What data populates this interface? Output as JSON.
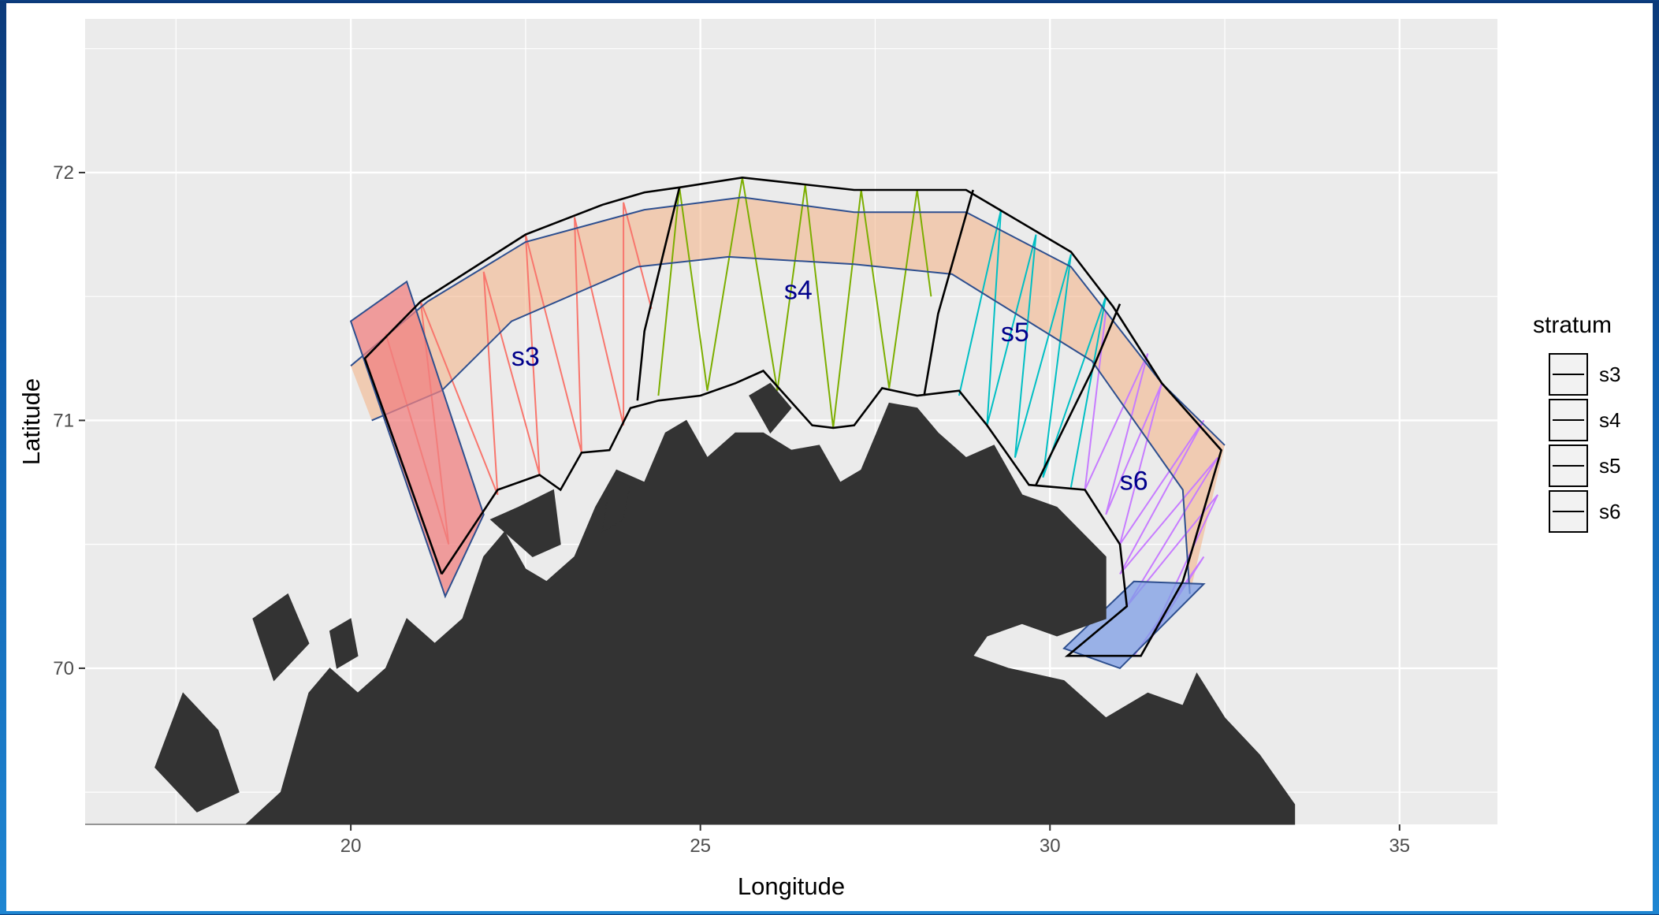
{
  "chart_data": {
    "type": "map",
    "xlabel": "Longitude",
    "ylabel": "Latitude",
    "xlim": [
      16.2,
      36.4
    ],
    "ylim": [
      69.37,
      72.62
    ],
    "x_ticks": [
      20,
      25,
      30,
      35
    ],
    "y_ticks": [
      70,
      71,
      72
    ],
    "x_minor": [
      17.5,
      22.5,
      27.5,
      32.5
    ],
    "y_minor": [
      69.5,
      70.5,
      71.5,
      72.5
    ],
    "grid": true,
    "legend": {
      "title": "stratum",
      "position": "right",
      "entries": [
        "s3",
        "s4",
        "s5",
        "s6"
      ]
    },
    "labels": [
      {
        "text": "s3",
        "lon": 22.5,
        "lat": 71.22
      },
      {
        "text": "s4",
        "lon": 26.4,
        "lat": 71.49
      },
      {
        "text": "s5",
        "lon": 29.5,
        "lat": 71.32
      },
      {
        "text": "s6",
        "lon": 31.2,
        "lat": 70.72
      }
    ],
    "label_color": "#00008b",
    "colors": {
      "s3": "#f8766d",
      "s4": "#7cae00",
      "s5": "#00bfc4",
      "s6": "#c77cff",
      "band_fill": "#f4b183",
      "band_line": "#2e4f8f",
      "box_red": "#f08080",
      "box_blue": "#7d9ee6",
      "land": "#333333",
      "panel": "#ebebeb"
    },
    "strata_outline": [
      [
        21.3,
        70.38
      ],
      [
        20.2,
        71.25
      ],
      [
        21.0,
        71.48
      ],
      [
        22.5,
        71.75
      ],
      [
        23.6,
        71.87
      ],
      [
        24.2,
        71.92
      ],
      [
        24.7,
        71.94
      ],
      [
        25.6,
        71.98
      ],
      [
        27.2,
        71.93
      ],
      [
        28.8,
        71.93
      ],
      [
        30.3,
        71.68
      ],
      [
        30.9,
        71.46
      ],
      [
        31.6,
        71.15
      ],
      [
        32.45,
        70.88
      ],
      [
        31.9,
        70.35
      ],
      [
        31.3,
        70.05
      ],
      [
        30.25,
        70.05
      ],
      [
        31.1,
        70.25
      ],
      [
        31.0,
        70.5
      ],
      [
        30.5,
        70.72
      ],
      [
        29.7,
        70.74
      ],
      [
        29.1,
        70.98
      ],
      [
        28.7,
        71.12
      ],
      [
        28.1,
        71.1
      ],
      [
        27.6,
        71.13
      ],
      [
        27.2,
        70.98
      ],
      [
        26.9,
        70.97
      ],
      [
        26.6,
        70.98
      ],
      [
        25.9,
        71.2
      ],
      [
        25.5,
        71.15
      ],
      [
        25.0,
        71.1
      ],
      [
        24.4,
        71.08
      ],
      [
        24.0,
        71.05
      ],
      [
        23.7,
        70.88
      ],
      [
        23.3,
        70.87
      ],
      [
        23.0,
        70.72
      ],
      [
        22.7,
        70.78
      ],
      [
        22.1,
        70.72
      ],
      [
        21.3,
        70.38
      ]
    ],
    "strata_dividers": [
      [
        [
          24.1,
          71.08
        ],
        [
          24.2,
          71.36
        ],
        [
          24.7,
          71.94
        ]
      ],
      [
        [
          28.2,
          71.1
        ],
        [
          28.4,
          71.43
        ],
        [
          28.9,
          71.93
        ]
      ],
      [
        [
          29.8,
          70.74
        ],
        [
          30.6,
          71.2
        ],
        [
          31.0,
          71.47
        ]
      ]
    ],
    "band_outer": [
      [
        20.0,
        71.22
      ],
      [
        21.1,
        71.48
      ],
      [
        22.5,
        71.72
      ],
      [
        24.2,
        71.85
      ],
      [
        25.6,
        71.9
      ],
      [
        27.2,
        71.84
      ],
      [
        28.8,
        71.84
      ],
      [
        30.3,
        71.62
      ],
      [
        31.6,
        71.15
      ],
      [
        32.5,
        70.9
      ]
    ],
    "band_inner": [
      [
        32.0,
        70.3
      ],
      [
        31.9,
        70.72
      ],
      [
        30.6,
        71.24
      ],
      [
        28.6,
        71.59
      ],
      [
        27.2,
        71.63
      ],
      [
        25.4,
        71.66
      ],
      [
        24.1,
        71.62
      ],
      [
        22.3,
        71.4
      ],
      [
        21.3,
        71.12
      ],
      [
        20.3,
        71.0
      ]
    ],
    "box_red": [
      [
        20.0,
        71.4
      ],
      [
        20.8,
        71.56
      ],
      [
        21.9,
        70.62
      ],
      [
        21.35,
        70.29
      ]
    ],
    "box_blue": [
      [
        30.2,
        70.08
      ],
      [
        31.2,
        70.35
      ],
      [
        32.2,
        70.34
      ],
      [
        31.0,
        70.0
      ]
    ],
    "transects": {
      "s3": [
        [
          20.5,
          71.35
        ],
        [
          21.4,
          70.5
        ],
        [
          21.0,
          71.48
        ],
        [
          22.1,
          70.7
        ],
        [
          21.9,
          71.6
        ],
        [
          22.7,
          70.78
        ],
        [
          22.5,
          71.75
        ],
        [
          23.3,
          70.87
        ],
        [
          23.2,
          71.82
        ],
        [
          23.9,
          70.98
        ],
        [
          23.9,
          71.88
        ],
        [
          24.3,
          71.45
        ]
      ],
      "s4": [
        [
          24.4,
          71.1
        ],
        [
          24.7,
          71.94
        ],
        [
          25.1,
          71.12
        ],
        [
          25.6,
          71.98
        ],
        [
          26.1,
          71.12
        ],
        [
          26.5,
          71.95
        ],
        [
          26.9,
          70.97
        ],
        [
          27.3,
          71.93
        ],
        [
          27.7,
          71.13
        ],
        [
          28.1,
          71.93
        ],
        [
          28.3,
          71.5
        ]
      ],
      "s5": [
        [
          28.7,
          71.1
        ],
        [
          29.3,
          71.85
        ],
        [
          29.1,
          70.98
        ],
        [
          29.8,
          71.75
        ],
        [
          29.5,
          70.85
        ],
        [
          30.3,
          71.67
        ],
        [
          29.9,
          70.77
        ],
        [
          30.8,
          71.5
        ],
        [
          30.3,
          70.73
        ]
      ],
      "s6": [
        [
          30.8,
          71.44
        ],
        [
          30.5,
          70.72
        ],
        [
          31.4,
          71.27
        ],
        [
          30.8,
          70.62
        ],
        [
          31.6,
          71.15
        ],
        [
          31.0,
          70.5
        ],
        [
          32.2,
          71.0
        ],
        [
          31.0,
          70.38
        ],
        [
          32.4,
          70.85
        ],
        [
          31.1,
          70.25
        ],
        [
          32.4,
          70.7
        ],
        [
          31.4,
          70.1
        ],
        [
          32.2,
          70.45
        ],
        [
          31.2,
          70.05
        ]
      ]
    },
    "land": [
      [
        [
          16.2,
          69.37
        ],
        [
          18.5,
          69.37
        ],
        [
          19.0,
          69.5
        ],
        [
          19.4,
          69.9
        ],
        [
          19.7,
          70.0
        ],
        [
          20.1,
          69.9
        ],
        [
          20.5,
          70.0
        ],
        [
          20.8,
          70.2
        ],
        [
          21.2,
          70.1
        ],
        [
          21.6,
          70.2
        ],
        [
          21.9,
          70.45
        ],
        [
          22.2,
          70.55
        ],
        [
          22.5,
          70.4
        ],
        [
          22.8,
          70.35
        ],
        [
          23.2,
          70.45
        ],
        [
          23.5,
          70.65
        ],
        [
          23.8,
          70.8
        ],
        [
          24.2,
          70.75
        ],
        [
          24.5,
          70.95
        ],
        [
          24.8,
          71.0
        ],
        [
          25.1,
          70.85
        ],
        [
          25.5,
          70.95
        ],
        [
          25.9,
          70.95
        ],
        [
          26.3,
          70.88
        ],
        [
          26.7,
          70.9
        ],
        [
          27.0,
          70.75
        ],
        [
          27.3,
          70.8
        ],
        [
          27.7,
          71.07
        ],
        [
          28.1,
          71.05
        ],
        [
          28.4,
          70.95
        ],
        [
          28.8,
          70.85
        ],
        [
          29.2,
          70.9
        ],
        [
          29.6,
          70.7
        ],
        [
          30.1,
          70.65
        ],
        [
          30.8,
          70.45
        ],
        [
          30.8,
          70.2
        ],
        [
          30.1,
          70.13
        ],
        [
          29.6,
          70.18
        ],
        [
          29.1,
          70.13
        ],
        [
          28.9,
          70.05
        ],
        [
          29.4,
          70.0
        ],
        [
          30.2,
          69.95
        ],
        [
          30.8,
          69.8
        ],
        [
          31.4,
          69.9
        ],
        [
          31.9,
          69.85
        ],
        [
          32.1,
          69.98
        ],
        [
          32.5,
          69.8
        ],
        [
          33.0,
          69.65
        ],
        [
          33.5,
          69.45
        ],
        [
          33.5,
          69.37
        ],
        [
          16.2,
          69.37
        ]
      ],
      [
        [
          17.6,
          69.9
        ],
        [
          18.1,
          69.75
        ],
        [
          18.4,
          69.5
        ],
        [
          17.8,
          69.42
        ],
        [
          17.2,
          69.6
        ],
        [
          17.6,
          69.9
        ]
      ],
      [
        [
          18.6,
          70.2
        ],
        [
          19.1,
          70.3
        ],
        [
          19.4,
          70.1
        ],
        [
          18.9,
          69.95
        ],
        [
          18.6,
          70.2
        ]
      ],
      [
        [
          19.7,
          70.15
        ],
        [
          20.0,
          70.2
        ],
        [
          20.1,
          70.05
        ],
        [
          19.8,
          70.0
        ],
        [
          19.7,
          70.15
        ]
      ],
      [
        [
          22.0,
          70.6
        ],
        [
          22.4,
          70.65
        ],
        [
          22.9,
          70.72
        ],
        [
          23.0,
          70.5
        ],
        [
          22.6,
          70.45
        ],
        [
          22.0,
          70.6
        ]
      ],
      [
        [
          25.7,
          71.1
        ],
        [
          26.0,
          71.15
        ],
        [
          26.3,
          71.05
        ],
        [
          26.0,
          70.95
        ],
        [
          25.7,
          71.1
        ]
      ],
      [
        [
          23.6,
          70.55
        ],
        [
          23.9,
          70.6
        ],
        [
          24.0,
          70.75
        ],
        [
          23.7,
          70.75
        ],
        [
          23.6,
          70.55
        ]
      ]
    ]
  }
}
